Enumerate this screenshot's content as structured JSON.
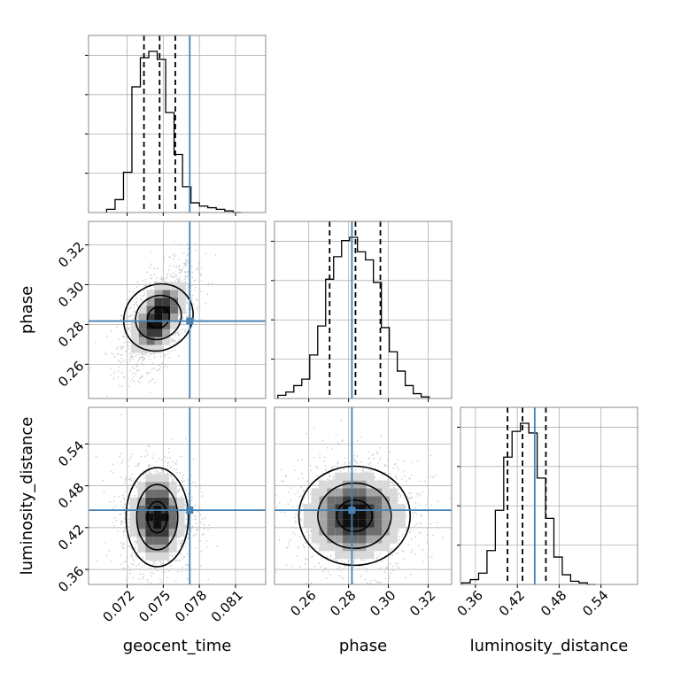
{
  "chart_data": {
    "type": "corner",
    "parameters": [
      "geocent_time",
      "phase",
      "luminosity_distance"
    ],
    "axis_labels": {
      "x": [
        "geocent_time",
        "phase",
        "luminosity_distance"
      ],
      "y": [
        "phase",
        "luminosity_distance"
      ]
    },
    "ranges": {
      "geocent_time": [
        0.0688,
        0.0835
      ],
      "phase": [
        0.2428,
        0.3318
      ],
      "luminosity_distance": [
        0.3385,
        0.5925
      ]
    },
    "ticks": {
      "geocent_time": [
        0.072,
        0.075,
        0.078,
        0.081
      ],
      "phase": [
        0.26,
        0.28,
        0.3,
        0.32
      ],
      "luminosity_distance": [
        0.36,
        0.42,
        0.48,
        0.54
      ]
    },
    "tick_labels": {
      "geocent_time": [
        "0.072",
        "0.075",
        "0.078",
        "0.081"
      ],
      "phase": [
        "0.26",
        "0.28",
        "0.30",
        "0.32"
      ],
      "luminosity_distance": [
        "0.36",
        "0.42",
        "0.48",
        "0.54"
      ]
    },
    "truths": {
      "geocent_time": 0.0772,
      "phase": 0.2817,
      "luminosity_distance": 0.445
    },
    "quantiles": {
      "geocent_time": [
        0.0734,
        0.0747,
        0.076
      ],
      "phase": [
        0.2705,
        0.2835,
        0.296
      ],
      "luminosity_distance": [
        0.406,
        0.4275,
        0.461
      ]
    },
    "histograms": {
      "geocent_time": {
        "edges": [
          0.0703,
          0.071,
          0.0717,
          0.0724,
          0.0731,
          0.0738,
          0.0745,
          0.0752,
          0.0759,
          0.0766,
          0.0773,
          0.078,
          0.0787,
          0.0794,
          0.0801,
          0.0808,
          0.0815
        ],
        "counts": [
          2,
          8,
          25,
          78,
          96,
          100,
          95,
          62,
          36,
          16,
          6,
          4,
          3,
          2,
          1,
          0
        ]
      },
      "phase": {
        "edges": [
          0.2445,
          0.2485,
          0.2525,
          0.2565,
          0.2605,
          0.2645,
          0.2685,
          0.2725,
          0.2765,
          0.2805,
          0.2845,
          0.2885,
          0.2925,
          0.2965,
          0.3005,
          0.3045,
          0.3085,
          0.3125,
          0.3165,
          0.3205
        ],
        "counts": [
          2,
          4,
          8,
          12,
          27,
          45,
          74,
          88,
          98,
          100,
          91,
          86,
          72,
          44,
          29,
          17,
          8,
          3,
          1
        ]
      },
      "luminosity_distance": {
        "edges": [
          0.3405,
          0.3525,
          0.3645,
          0.3765,
          0.3885,
          0.4005,
          0.4125,
          0.4245,
          0.4365,
          0.4485,
          0.4605,
          0.4725,
          0.4845,
          0.4965,
          0.5085,
          0.5205,
          0.5325
        ],
        "counts": [
          1,
          3,
          7,
          21,
          46,
          79,
          95,
          100,
          94,
          66,
          41,
          17,
          6,
          2,
          1,
          0
        ]
      }
    },
    "posteriors_2d": [
      {
        "x": "geocent_time",
        "y": "phase",
        "peak": [
          0.0746,
          0.2835
        ],
        "sigma": [
          0.0012,
          0.0105
        ],
        "correlation": 0.55,
        "density_levels": [
          "39%",
          "86%",
          "99%"
        ]
      },
      {
        "x": "geocent_time",
        "y": "luminosity_distance",
        "peak": [
          0.0745,
          0.435
        ],
        "sigma": [
          0.0012,
          0.033
        ],
        "correlation": 0.0,
        "density_levels": [
          "39%",
          "86%",
          "99%"
        ]
      },
      {
        "x": "phase",
        "y": "luminosity_distance",
        "peak": [
          0.283,
          0.437
        ],
        "sigma": [
          0.013,
          0.033
        ],
        "correlation": 0.0,
        "density_levels": [
          "39%",
          "86%",
          "99%"
        ]
      }
    ],
    "grid": true,
    "colors": {
      "truth": "#4682b4",
      "hist": "#000000",
      "scatter": "#c8c8c8",
      "grid": "#b0b0b0",
      "frame": "#888888",
      "density": [
        "#ffffff",
        "#d9d9d9",
        "#a6a6a6",
        "#6e6e6e",
        "#3a3a3a",
        "#0f0f0f"
      ]
    }
  }
}
